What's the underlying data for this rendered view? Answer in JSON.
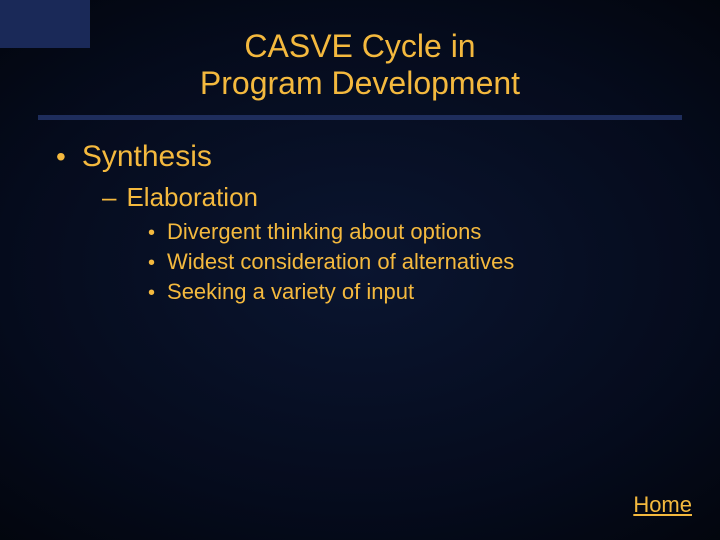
{
  "colors": {
    "title": "#f4b93e",
    "text": "#f4b93e",
    "accent_block": "#1a2958",
    "hr": "#1e2d5c",
    "background_center": "#0a1530",
    "background_edge": "#000000"
  },
  "title": {
    "line1": "CASVE Cycle in",
    "line2": "Program Development",
    "fontsize": 32
  },
  "content": {
    "level1": {
      "bullet": "•",
      "text": "Synthesis",
      "fontsize": 30
    },
    "level2": {
      "dash": "–",
      "text": "Elaboration",
      "fontsize": 26
    },
    "level3": {
      "bullet": "•",
      "fontsize": 22,
      "items": [
        "Divergent thinking about options",
        "Widest consideration of alternatives",
        "Seeking a variety of input"
      ]
    }
  },
  "link": {
    "label": "Home"
  }
}
